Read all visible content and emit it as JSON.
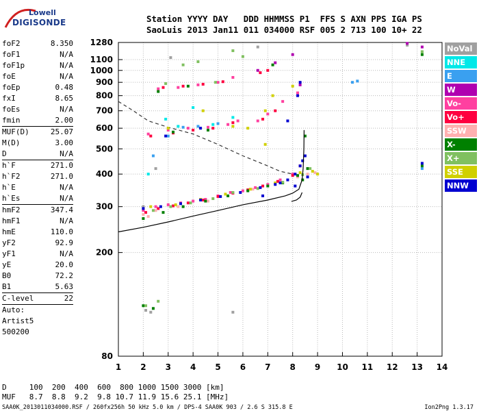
{
  "logo": {
    "line1": "Lowell",
    "line2": "DIGISONDE"
  },
  "header": {
    "line1": "Station YYYY DAY   DDD HHMMSS P1  FFS S AXN PPS IGA PS",
    "line2": "SaoLuis 2013 Jan11 011 034000 RSF 005 2 713 100 10+ 22"
  },
  "parameters": [
    {
      "k": "foF2",
      "v": "8.350"
    },
    {
      "k": "foF1",
      "v": "N/A"
    },
    {
      "k": "foF1p",
      "v": "N/A"
    },
    {
      "k": "foE",
      "v": "N/A"
    },
    {
      "k": "foEp",
      "v": "0.48"
    },
    {
      "k": "fxI",
      "v": "8.65"
    },
    {
      "k": "foEs",
      "v": "N/A"
    },
    {
      "k": "fmin",
      "v": "2.00"
    },
    {
      "k": "MUF(D)",
      "v": "25.07",
      "sep": true
    },
    {
      "k": "M(D)",
      "v": "3.00"
    },
    {
      "k": "D",
      "v": "N/A"
    },
    {
      "k": "h`F",
      "v": "271.0",
      "sep": true
    },
    {
      "k": "h`F2",
      "v": "271.0"
    },
    {
      "k": "h`E",
      "v": "N/A"
    },
    {
      "k": "h`Es",
      "v": "N/A"
    },
    {
      "k": "hmF2",
      "v": "347.4",
      "sep": true
    },
    {
      "k": "hmF1",
      "v": "N/A"
    },
    {
      "k": "hmE",
      "v": "110.0"
    },
    {
      "k": "yF2",
      "v": "92.9"
    },
    {
      "k": "yF1",
      "v": "N/A"
    },
    {
      "k": "yE",
      "v": "20.0"
    },
    {
      "k": "B0",
      "v": "72.2"
    },
    {
      "k": "B1",
      "v": "5.63"
    },
    {
      "k": "C-level",
      "v": "22",
      "sep": true
    },
    {
      "k": "Auto:",
      "v": "",
      "sep": true
    },
    {
      "k": "Artist5",
      "v": ""
    },
    {
      "k": "500200",
      "v": ""
    }
  ],
  "legend": [
    {
      "label": "NoVal",
      "color": "#a0a0a0"
    },
    {
      "label": "NNE",
      "color": "#00e8e8"
    },
    {
      "label": "E",
      "color": "#3aa0f0"
    },
    {
      "label": "W",
      "color": "#b000b0"
    },
    {
      "label": "Vo-",
      "color": "#ff40a0"
    },
    {
      "label": "Vo+",
      "color": "#ff0040"
    },
    {
      "label": "SSW",
      "color": "#ffb0b0"
    },
    {
      "label": "X-",
      "color": "#008000"
    },
    {
      "label": "X+",
      "color": "#80c060"
    },
    {
      "label": "SSE",
      "color": "#d0d000"
    },
    {
      "label": "NNW",
      "color": "#0000d0"
    }
  ],
  "footer": {
    "line1": "D     100  200  400  600  800 1000 1500 3000 [km]",
    "line2": "MUF   8.7  8.8  9.2  9.8 10.7 11.9 15.6 25.1 [MHz]",
    "line3": "SAA0K_2013011034000.RSF / 260fx256h 50 kHz 5.0 km / DPS-4 SAA0K 903 / 2.6 S 315.8 E",
    "line3_right": "Ion2Png 1.3.17"
  },
  "chart_data": {
    "type": "scatter",
    "title": "",
    "xlabel": "",
    "ylabel": "",
    "xlim": [
      1,
      14
    ],
    "ylim": [
      80,
      1280
    ],
    "y_scale": "log",
    "x_ticks": [
      1,
      2,
      3,
      4,
      5,
      6,
      7,
      8,
      9,
      10,
      11,
      12,
      13,
      14
    ],
    "y_ticks": [
      80,
      200,
      300,
      400,
      500,
      600,
      700,
      800,
      900,
      1000,
      1100,
      1280
    ],
    "grid": true,
    "series": [
      {
        "name": "NoVal",
        "points": [
          [
            2.1,
            120
          ],
          [
            2.3,
            118
          ],
          [
            5.6,
            118
          ],
          [
            2.0,
            300
          ],
          [
            2.5,
            420
          ],
          [
            3.1,
            1120
          ],
          [
            6.6,
            1230
          ],
          [
            13.2,
            1180
          ],
          [
            12.6,
            1250
          ]
        ]
      },
      {
        "name": "NNE",
        "points": [
          [
            2.2,
            400
          ],
          [
            2.9,
            650
          ],
          [
            3.4,
            610
          ],
          [
            4.0,
            720
          ],
          [
            4.8,
            620
          ],
          [
            5.6,
            660
          ]
        ]
      },
      {
        "name": "E",
        "points": [
          [
            10.4,
            900
          ],
          [
            10.6,
            910
          ],
          [
            2.4,
            470
          ],
          [
            3.0,
            560
          ],
          [
            3.6,
            605
          ],
          [
            4.2,
            610
          ],
          [
            5.0,
            625
          ],
          [
            13.2,
            420
          ]
        ]
      },
      {
        "name": "W",
        "points": [
          [
            12.6,
            1270
          ],
          [
            13.2,
            1230
          ],
          [
            6.6,
            1000
          ],
          [
            7.3,
            1070
          ],
          [
            8.0,
            1150
          ],
          [
            8.3,
            880
          ],
          [
            8.6,
            420
          ]
        ]
      },
      {
        "name": "Vo-",
        "points": [
          [
            2.0,
            290
          ],
          [
            2.5,
            300
          ],
          [
            3.0,
            305
          ],
          [
            3.5,
            310
          ],
          [
            4.0,
            315
          ],
          [
            4.5,
            320
          ],
          [
            5.0,
            330
          ],
          [
            5.5,
            340
          ],
          [
            6.0,
            345
          ],
          [
            6.5,
            355
          ],
          [
            7.0,
            365
          ],
          [
            7.5,
            380
          ],
          [
            8.0,
            400
          ],
          [
            2.2,
            570
          ],
          [
            3.0,
            590
          ],
          [
            3.8,
            600
          ],
          [
            4.6,
            605
          ],
          [
            5.4,
            620
          ],
          [
            5.8,
            640
          ],
          [
            2.6,
            850
          ],
          [
            3.4,
            860
          ],
          [
            4.2,
            880
          ],
          [
            5.0,
            900
          ],
          [
            5.6,
            940
          ],
          [
            6.6,
            640
          ],
          [
            7.0,
            680
          ],
          [
            7.6,
            760
          ],
          [
            8.2,
            820
          ]
        ]
      },
      {
        "name": "Vo+",
        "points": [
          [
            2.1,
            285
          ],
          [
            2.6,
            295
          ],
          [
            3.2,
            302
          ],
          [
            3.8,
            310
          ],
          [
            4.4,
            318
          ],
          [
            5.0,
            328
          ],
          [
            5.6,
            338
          ],
          [
            6.2,
            348
          ],
          [
            6.8,
            360
          ],
          [
            7.4,
            375
          ],
          [
            8.0,
            395
          ],
          [
            8.3,
            430
          ],
          [
            2.3,
            560
          ],
          [
            3.2,
            575
          ],
          [
            4.0,
            590
          ],
          [
            4.8,
            600
          ],
          [
            5.6,
            630
          ],
          [
            2.8,
            860
          ],
          [
            3.6,
            870
          ],
          [
            4.4,
            885
          ],
          [
            5.2,
            905
          ],
          [
            6.8,
            650
          ],
          [
            7.3,
            700
          ],
          [
            6.7,
            980
          ],
          [
            7.0,
            1000
          ]
        ]
      },
      {
        "name": "SSW",
        "points": [
          [
            2.0,
            280
          ],
          [
            2.2,
            275
          ],
          [
            2.5,
            290
          ],
          [
            3.4,
            300
          ],
          [
            4.6,
            315
          ],
          [
            6.4,
            350
          ],
          [
            8.2,
            390
          ],
          [
            8.6,
            400
          ],
          [
            8.9,
            405
          ]
        ]
      },
      {
        "name": "X-",
        "points": [
          [
            2.0,
            125
          ],
          [
            2.4,
            122
          ],
          [
            2.0,
            270
          ],
          [
            2.8,
            285
          ],
          [
            3.6,
            300
          ],
          [
            4.5,
            315
          ],
          [
            5.4,
            330
          ],
          [
            6.2,
            345
          ],
          [
            7.0,
            360
          ],
          [
            7.6,
            370
          ],
          [
            8.2,
            395
          ],
          [
            8.4,
            380
          ],
          [
            8.6,
            420
          ],
          [
            8.5,
            560
          ],
          [
            3.2,
            580
          ],
          [
            4.6,
            590
          ],
          [
            2.6,
            830
          ],
          [
            3.8,
            870
          ],
          [
            7.2,
            1050
          ],
          [
            13.2,
            1150
          ],
          [
            13.2,
            430
          ]
        ]
      },
      {
        "name": "X+",
        "points": [
          [
            2.1,
            125
          ],
          [
            2.6,
            130
          ],
          [
            2.4,
            290
          ],
          [
            3.1,
            300
          ],
          [
            3.9,
            310
          ],
          [
            4.8,
            322
          ],
          [
            5.6,
            340
          ],
          [
            6.6,
            352
          ],
          [
            7.6,
            372
          ],
          [
            8.4,
            398
          ],
          [
            8.7,
            420
          ],
          [
            3.6,
            1050
          ],
          [
            4.2,
            1080
          ],
          [
            5.6,
            1190
          ],
          [
            6.0,
            1130
          ],
          [
            2.9,
            890
          ],
          [
            4.9,
            900
          ],
          [
            13.2,
            1180
          ]
        ]
      },
      {
        "name": "SSE",
        "points": [
          [
            2.3,
            300
          ],
          [
            3.3,
            305
          ],
          [
            4.3,
            320
          ],
          [
            5.3,
            335
          ],
          [
            6.3,
            350
          ],
          [
            7.3,
            370
          ],
          [
            8.3,
            405
          ],
          [
            8.8,
            410
          ],
          [
            9.0,
            400
          ],
          [
            3.0,
            600
          ],
          [
            4.4,
            700
          ],
          [
            5.6,
            610
          ],
          [
            6.2,
            600
          ],
          [
            6.9,
            520
          ],
          [
            6.9,
            700
          ],
          [
            7.2,
            800
          ],
          [
            8.0,
            870
          ]
        ]
      },
      {
        "name": "NNW",
        "points": [
          [
            2.0,
            295
          ],
          [
            2.7,
            300
          ],
          [
            3.5,
            308
          ],
          [
            4.3,
            318
          ],
          [
            5.1,
            328
          ],
          [
            5.9,
            340
          ],
          [
            6.7,
            355
          ],
          [
            7.3,
            365
          ],
          [
            7.8,
            380
          ],
          [
            8.1,
            400
          ],
          [
            8.3,
            430
          ],
          [
            8.4,
            450
          ],
          [
            8.5,
            470
          ],
          [
            8.1,
            360
          ],
          [
            8.6,
            390
          ],
          [
            6.8,
            330
          ],
          [
            7.5,
            370
          ],
          [
            4.3,
            600
          ],
          [
            2.9,
            560
          ],
          [
            7.8,
            640
          ],
          [
            8.2,
            800
          ],
          [
            8.3,
            900
          ],
          [
            13.2,
            440
          ]
        ]
      }
    ],
    "lines": [
      {
        "name": "trace",
        "points": [
          [
            1.0,
            240
          ],
          [
            2.0,
            250
          ],
          [
            3.0,
            262
          ],
          [
            4.0,
            276
          ],
          [
            5.0,
            290
          ],
          [
            6.0,
            305
          ],
          [
            7.0,
            318
          ],
          [
            7.7,
            330
          ],
          [
            8.0,
            338
          ],
          [
            8.25,
            350
          ],
          [
            8.38,
            380
          ],
          [
            8.42,
            420
          ],
          [
            8.45,
            500
          ],
          [
            8.46,
            590
          ]
        ]
      },
      {
        "name": "mirror",
        "points": [
          [
            8.38,
            340
          ],
          [
            8.3,
            326
          ],
          [
            8.15,
            318
          ],
          [
            7.95,
            314
          ]
        ]
      }
    ],
    "dashed": [
      {
        "name": "dashed",
        "points": [
          [
            1.0,
            760
          ],
          [
            1.6,
            700
          ],
          [
            2.2,
            640
          ],
          [
            3.0,
            605
          ],
          [
            4.0,
            570
          ],
          [
            5.0,
            520
          ],
          [
            6.0,
            470
          ],
          [
            7.0,
            430
          ],
          [
            7.5,
            410
          ],
          [
            8.0,
            400
          ]
        ]
      }
    ]
  }
}
